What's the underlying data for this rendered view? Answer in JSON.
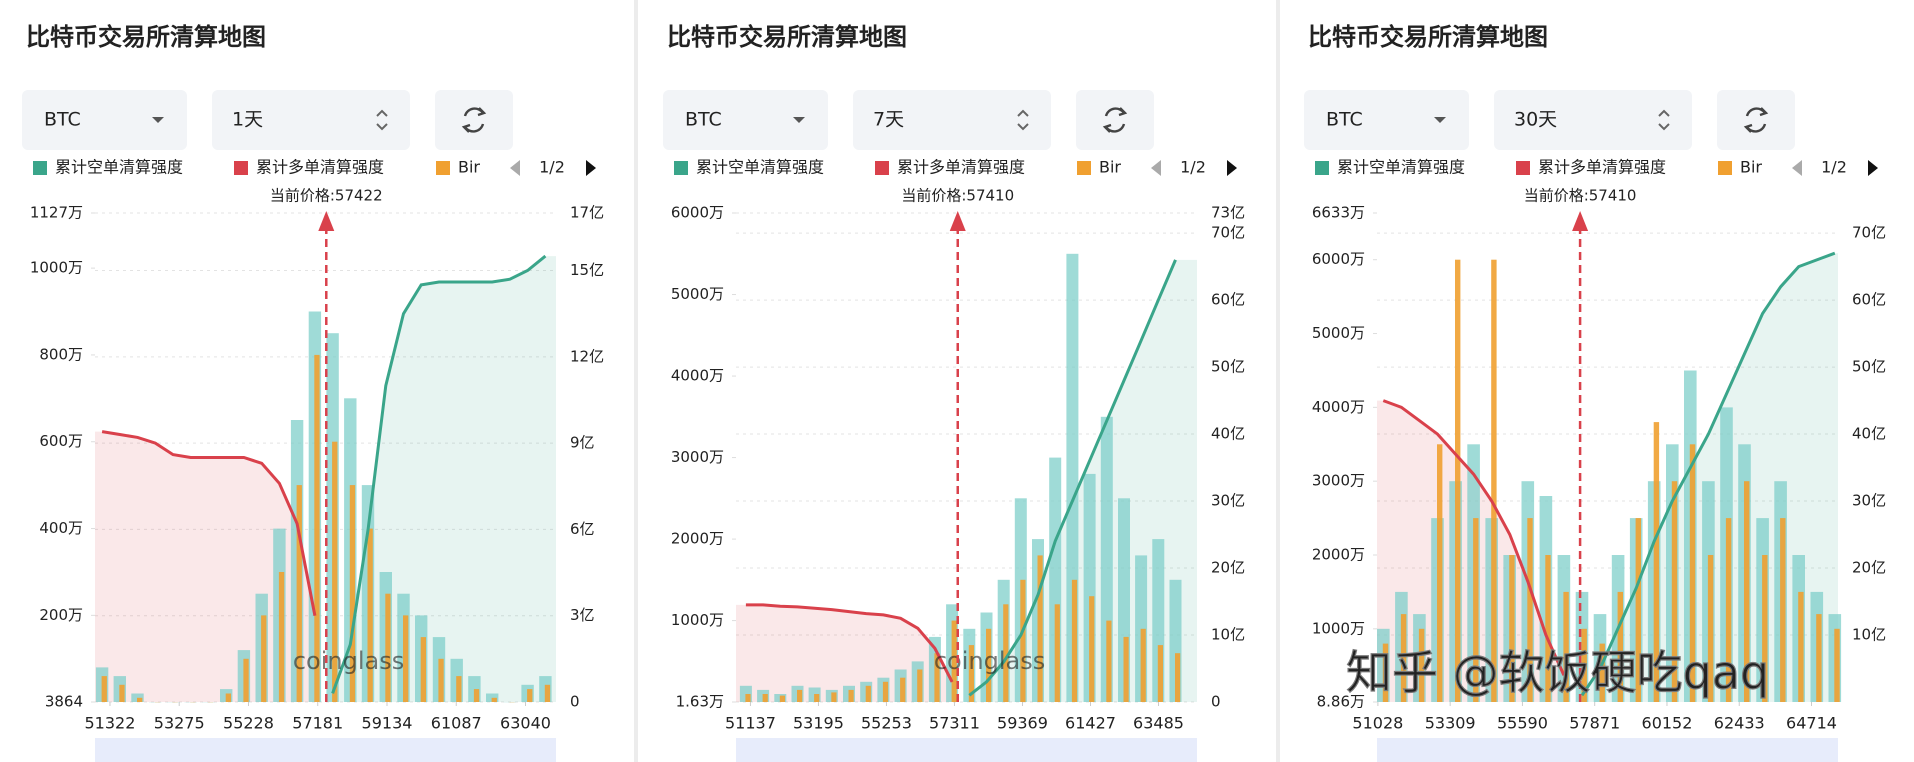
{
  "watermark": "知乎 @软饭硬吃qaq",
  "chart_data": [
    {
      "type": "liquidation",
      "title": "比特币交易所清算地图",
      "symbol": "BTC",
      "period": "1天",
      "legend_page": "1/2",
      "current_price": 57422,
      "current_price_label": "当前价格:57422",
      "watermark": "coinglass",
      "grid": true,
      "x": [
        51100,
        51600,
        52100,
        52600,
        53100,
        53600,
        54100,
        54600,
        55100,
        55600,
        56100,
        56600,
        57100,
        57600,
        58100,
        58600,
        59100,
        59600,
        60100,
        60600,
        61100,
        61600,
        62100,
        62600,
        63100,
        63600
      ],
      "xlim": [
        50900,
        63900
      ],
      "xticks": [
        51322,
        53275,
        55228,
        57181,
        59134,
        61087,
        63040
      ],
      "ylim": [
        0.3864,
        1127
      ],
      "yticks": [
        {
          "value": 0.3864,
          "label": "3864"
        },
        {
          "value": 200,
          "label": "200万"
        },
        {
          "value": 400,
          "label": "400万"
        },
        {
          "value": 600,
          "label": "600万"
        },
        {
          "value": 800,
          "label": "800万"
        },
        {
          "value": 1000,
          "label": "1000万"
        },
        {
          "value": 1127,
          "label": "1127万"
        }
      ],
      "y2lim": [
        0,
        17
      ],
      "y2ticks": [
        0,
        {
          "value": 3,
          "label": "3亿"
        },
        {
          "value": 6,
          "label": "6亿"
        },
        {
          "value": 9,
          "label": "9亿"
        },
        {
          "value": 12,
          "label": "12亿"
        },
        {
          "value": 15,
          "label": "15亿"
        },
        {
          "value": 17,
          "label": "17亿"
        }
      ],
      "series": [
        {
          "name": "累计空单清算强度",
          "color": "#3aa58a",
          "axis": "y2",
          "kind": "line",
          "values": [
            null,
            null,
            null,
            null,
            null,
            null,
            null,
            null,
            null,
            null,
            null,
            null,
            null,
            0.3,
            2.0,
            6.0,
            11.0,
            13.5,
            14.5,
            14.6,
            14.6,
            14.6,
            14.6,
            14.7,
            15.0,
            15.5
          ]
        },
        {
          "name": "累计多单清算强度",
          "color": "#d9414b",
          "axis": "y2",
          "kind": "line",
          "values": [
            9.4,
            9.3,
            9.2,
            9.0,
            8.6,
            8.5,
            8.5,
            8.5,
            8.5,
            8.3,
            7.6,
            6.2,
            3.0,
            null,
            null,
            null,
            null,
            null,
            null,
            null,
            null,
            null,
            null,
            null,
            null,
            null
          ]
        },
        {
          "name": "Bir",
          "color": "#f0a030",
          "kind": "bar",
          "values": [
            60,
            40,
            10,
            0,
            0,
            0,
            0,
            20,
            100,
            200,
            300,
            500,
            800,
            600,
            500,
            400,
            250,
            200,
            150,
            100,
            60,
            30,
            10,
            0,
            30,
            40
          ]
        },
        {
          "color": "#7fcfc9",
          "kind": "bar",
          "values": [
            80,
            60,
            20,
            0,
            0,
            0,
            0,
            30,
            120,
            250,
            400,
            650,
            900,
            850,
            700,
            500,
            300,
            250,
            200,
            150,
            100,
            60,
            20,
            0,
            40,
            60
          ]
        }
      ]
    },
    {
      "type": "liquidation",
      "title": "比特币交易所清算地图",
      "symbol": "BTC",
      "period": "7天",
      "legend_page": "1/2",
      "current_price": 57410,
      "current_price_label": "当前价格:57410",
      "watermark": "coinglass",
      "grid": true,
      "x": [
        51000,
        51520,
        52040,
        52560,
        53080,
        53600,
        54120,
        54640,
        55160,
        55680,
        56200,
        56720,
        57240,
        57760,
        58280,
        58800,
        59320,
        59840,
        60360,
        60880,
        61400,
        61920,
        62440,
        62960,
        63480,
        64000
      ],
      "xlim": [
        50700,
        64650
      ],
      "xticks": [
        51137,
        53195,
        55253,
        57311,
        59369,
        61427,
        63485
      ],
      "ylim": [
        1.63,
        6000
      ],
      "yticks": [
        {
          "value": 1.63,
          "label": "1.63万"
        },
        {
          "value": 1000,
          "label": "1000万"
        },
        {
          "value": 2000,
          "label": "2000万"
        },
        {
          "value": 3000,
          "label": "3000万"
        },
        {
          "value": 4000,
          "label": "4000万"
        },
        {
          "value": 5000,
          "label": "5000万"
        },
        {
          "value": 6000,
          "label": "6000万"
        }
      ],
      "y2lim": [
        0,
        73
      ],
      "y2ticks": [
        0,
        {
          "value": 10,
          "label": "10亿"
        },
        {
          "value": 20,
          "label": "20亿"
        },
        {
          "value": 30,
          "label": "30亿"
        },
        {
          "value": 40,
          "label": "40亿"
        },
        {
          "value": 50,
          "label": "50亿"
        },
        {
          "value": 60,
          "label": "60亿"
        },
        {
          "value": 70,
          "label": "70亿"
        },
        {
          "value": 73,
          "label": "73亿"
        }
      ],
      "series": [
        {
          "name": "累计空单清算强度",
          "color": "#3aa58a",
          "axis": "y2",
          "kind": "line",
          "values": [
            null,
            null,
            null,
            null,
            null,
            null,
            null,
            null,
            null,
            null,
            null,
            null,
            null,
            1,
            3,
            6,
            10,
            16,
            24,
            30,
            36,
            42,
            48,
            54,
            60,
            66
          ]
        },
        {
          "name": "累计多单清算强度",
          "color": "#d9414b",
          "axis": "y2",
          "kind": "line",
          "values": [
            14.5,
            14.5,
            14.3,
            14.2,
            14.0,
            13.8,
            13.5,
            13.2,
            13.0,
            12.5,
            11.0,
            8.0,
            3.0,
            null,
            null,
            null,
            null,
            null,
            null,
            null,
            null,
            null,
            null,
            null,
            null,
            null
          ]
        },
        {
          "name": "Bir",
          "color": "#f0a030",
          "kind": "bar",
          "values": [
            100,
            100,
            80,
            150,
            100,
            120,
            150,
            200,
            250,
            300,
            400,
            600,
            1000,
            700,
            900,
            1200,
            1500,
            1800,
            1200,
            1500,
            1300,
            1000,
            800,
            900,
            700,
            600
          ]
        },
        {
          "color": "#7fcfc9",
          "kind": "bar",
          "values": [
            200,
            150,
            100,
            200,
            180,
            150,
            200,
            250,
            300,
            400,
            500,
            800,
            1200,
            900,
            1100,
            1500,
            2500,
            2000,
            3000,
            5500,
            2800,
            3500,
            2500,
            1800,
            2000,
            1500
          ]
        }
      ]
    },
    {
      "type": "liquidation",
      "title": "比特币交易所清算地图",
      "symbol": "BTC",
      "period": "30天",
      "legend_page": "1/2",
      "current_price": 57410,
      "current_price_label": "当前价格:57410",
      "grid": true,
      "x": [
        51200,
        51770,
        52340,
        52910,
        53480,
        54050,
        54620,
        55190,
        55760,
        56330,
        56900,
        57470,
        58040,
        58610,
        59180,
        59750,
        60320,
        60890,
        61460,
        62030,
        62600,
        63170,
        63740,
        64310,
        64880,
        65450
      ],
      "xlim": [
        51000,
        65550
      ],
      "xticks": [
        51028,
        53309,
        55590,
        57871,
        60152,
        62433,
        64714
      ],
      "ylim": [
        8.86,
        6633
      ],
      "yticks": [
        {
          "value": 8.86,
          "label": "8.86万"
        },
        {
          "value": 1000,
          "label": "1000万"
        },
        {
          "value": 2000,
          "label": "2000万"
        },
        {
          "value": 3000,
          "label": "3000万"
        },
        {
          "value": 4000,
          "label": "4000万"
        },
        {
          "value": 5000,
          "label": "5000万"
        },
        {
          "value": 6000,
          "label": "6000万"
        },
        {
          "value": 6633,
          "label": "6633万"
        }
      ],
      "y2lim": [
        0,
        73
      ],
      "y2ticks": [
        {
          "value": 10,
          "label": "10亿"
        },
        {
          "value": 20,
          "label": "20亿"
        },
        {
          "value": 30,
          "label": "30亿"
        },
        {
          "value": 40,
          "label": "40亿"
        },
        {
          "value": 50,
          "label": "50亿"
        },
        {
          "value": 60,
          "label": "60亿"
        },
        {
          "value": 70,
          "label": "70亿"
        }
      ],
      "series": [
        {
          "name": "累计空单清算强度",
          "color": "#3aa58a",
          "axis": "y2",
          "kind": "line",
          "values": [
            null,
            null,
            null,
            null,
            null,
            null,
            null,
            null,
            null,
            null,
            null,
            1,
            5,
            11,
            17,
            24,
            30,
            35,
            40,
            46,
            52,
            58,
            62,
            65,
            66,
            67
          ]
        },
        {
          "name": "累计多单清算强度",
          "color": "#d9414b",
          "axis": "y2",
          "kind": "line",
          "values": [
            45,
            44,
            42,
            40,
            37,
            34,
            30,
            25,
            18,
            10,
            4,
            null,
            null,
            null,
            null,
            null,
            null,
            null,
            null,
            null,
            null,
            null,
            null,
            null,
            null,
            null
          ]
        },
        {
          "name": "Bir",
          "color": "#f0a030",
          "kind": "bar",
          "values": [
            800,
            1200,
            1000,
            3500,
            6000,
            2500,
            6000,
            2000,
            2500,
            2000,
            1500,
            1000,
            800,
            1500,
            2500,
            3800,
            3000,
            3500,
            2000,
            2500,
            3000,
            2000,
            2500,
            1500,
            1200,
            1000
          ]
        },
        {
          "color": "#7fcfc9",
          "kind": "bar",
          "values": [
            1000,
            1500,
            1200,
            2500,
            3000,
            3500,
            2500,
            2000,
            3000,
            2800,
            2000,
            1500,
            1200,
            2000,
            2500,
            3000,
            3500,
            4500,
            3000,
            4000,
            3500,
            2500,
            3000,
            2000,
            1500,
            1200
          ]
        }
      ]
    }
  ]
}
